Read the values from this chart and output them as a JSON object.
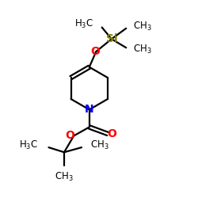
{
  "bg_color": "#ffffff",
  "bond_color": "#000000",
  "bond_lw": 1.6,
  "atom_colors": {
    "O": "#ff0000",
    "N": "#0000ff",
    "Si": "#808000",
    "C": "#000000"
  },
  "font_size": 8.5
}
